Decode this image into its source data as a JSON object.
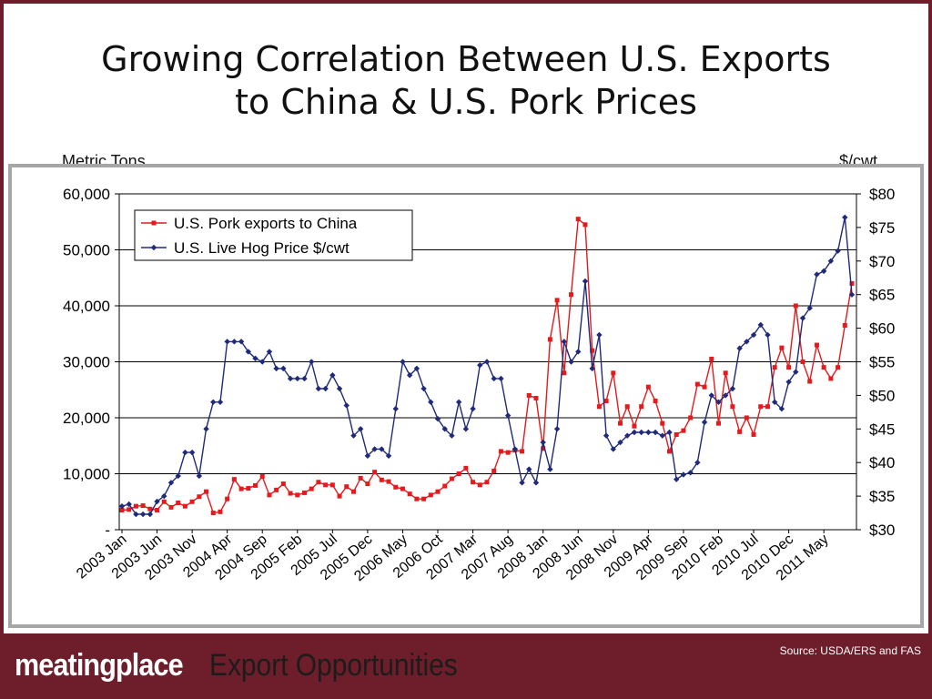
{
  "slide": {
    "title_line1": "Growing Correlation Between U.S. Exports",
    "title_line2": "to China & U.S. Pork Prices",
    "left_unit": "Metric Tons",
    "right_unit": "$/cwt",
    "source": "Source: USDA/ERS and FAS",
    "brand": "meatingplace",
    "tagline": "Export Opportunities"
  },
  "colors": {
    "background": "#6e1d2a",
    "exports": "#e41a1c",
    "hog": "#1f2a7a"
  },
  "chart_data": {
    "type": "line",
    "x_tick_labels": [
      "2003 Jan",
      "2003 Jun",
      "2003 Nov",
      "2004 Apr",
      "2004 Sep",
      "2005 Feb",
      "2005 Jul",
      "2005 Dec",
      "2006 May",
      "2006 Oct",
      "2007 Mar",
      "2007 Aug",
      "2008 Jan",
      "2008 Jun",
      "2008 Nov",
      "2009 Apr",
      "2009 Sep",
      "2010 Feb",
      "2010 Jul",
      "2010 Dec",
      "2011 May"
    ],
    "x_start": "2003-01",
    "x_end": "2011-10",
    "y_left": {
      "ylim": [
        0,
        60000
      ],
      "tick_labels": [
        "-",
        "10,000",
        "20,000",
        "30,000",
        "40,000",
        "50,000",
        "60,000"
      ]
    },
    "y_right": {
      "ylim": [
        30,
        80
      ],
      "tick_labels": [
        "$30",
        "$35",
        "$40",
        "$45",
        "$50",
        "$55",
        "$60",
        "$65",
        "$70",
        "$75",
        "$80"
      ]
    },
    "legend_position": "top-left",
    "grid": "horizontal",
    "series": [
      {
        "name": "U.S. Pork exports to China",
        "axis": "left",
        "values": [
          3500,
          3600,
          4200,
          4300,
          3700,
          3500,
          5000,
          4000,
          4800,
          4200,
          5000,
          5900,
          6800,
          3000,
          3200,
          5500,
          9000,
          7300,
          7400,
          7900,
          9500,
          6200,
          7100,
          8200,
          6500,
          6200,
          6600,
          7300,
          8500,
          8000,
          8000,
          6000,
          7700,
          6800,
          9200,
          8200,
          10300,
          8900,
          8600,
          7600,
          7300,
          6400,
          5500,
          5500,
          6200,
          6800,
          7800,
          9100,
          10000,
          11000,
          8500,
          8000,
          8500,
          10500,
          14000,
          13800,
          14200,
          14000,
          24000,
          23500,
          14500,
          34000,
          41000,
          28000,
          42000,
          55500,
          54500,
          32000,
          22000,
          23000,
          28000,
          19000,
          22000,
          18500,
          22000,
          25500,
          23000,
          19000,
          14000,
          17000,
          17700,
          20000,
          26000,
          25500,
          30500,
          19000,
          28000,
          22000,
          17500,
          20000,
          17000,
          22000,
          22000,
          29000,
          32500,
          29000,
          40000,
          30000,
          26500,
          33000,
          29000,
          27000,
          29000,
          36500,
          44000
        ]
      },
      {
        "name": "U.S. Live Hog Price $/cwt",
        "axis": "right",
        "values": [
          33.5,
          33.8,
          32.3,
          32.3,
          32.3,
          34.2,
          35.0,
          37.0,
          38.0,
          41.5,
          41.5,
          38.0,
          45.0,
          49.0,
          49.0,
          58.0,
          58.0,
          58.0,
          56.5,
          55.5,
          55.0,
          56.5,
          54.0,
          54.0,
          52.5,
          52.5,
          52.5,
          55.0,
          51.0,
          51.0,
          53.0,
          51.0,
          48.5,
          44.0,
          45.0,
          41.0,
          42.0,
          42.0,
          41.0,
          48.0,
          55.0,
          53.0,
          54.0,
          51.0,
          49.0,
          46.5,
          45.0,
          44.0,
          49.0,
          45.0,
          48.0,
          54.5,
          55.0,
          52.5,
          52.5,
          47.0,
          42.0,
          37.0,
          39.0,
          37.0,
          43.0,
          39.0,
          45.0,
          58.0,
          55.0,
          56.5,
          67.0,
          54.0,
          59.0,
          44.0,
          42.0,
          43.0,
          44.0,
          44.5,
          44.5,
          44.5,
          44.5,
          44.0,
          44.5,
          37.5,
          38.2,
          38.5,
          40.0,
          46.0,
          50.0,
          49.0,
          50.0,
          51.0,
          57.0,
          58.0,
          59.0,
          60.5,
          59.0,
          49.0,
          48.0,
          52.0,
          53.5,
          61.5,
          63.0,
          68.0,
          68.5,
          70.0,
          71.5,
          76.5,
          65.0
        ]
      }
    ]
  }
}
